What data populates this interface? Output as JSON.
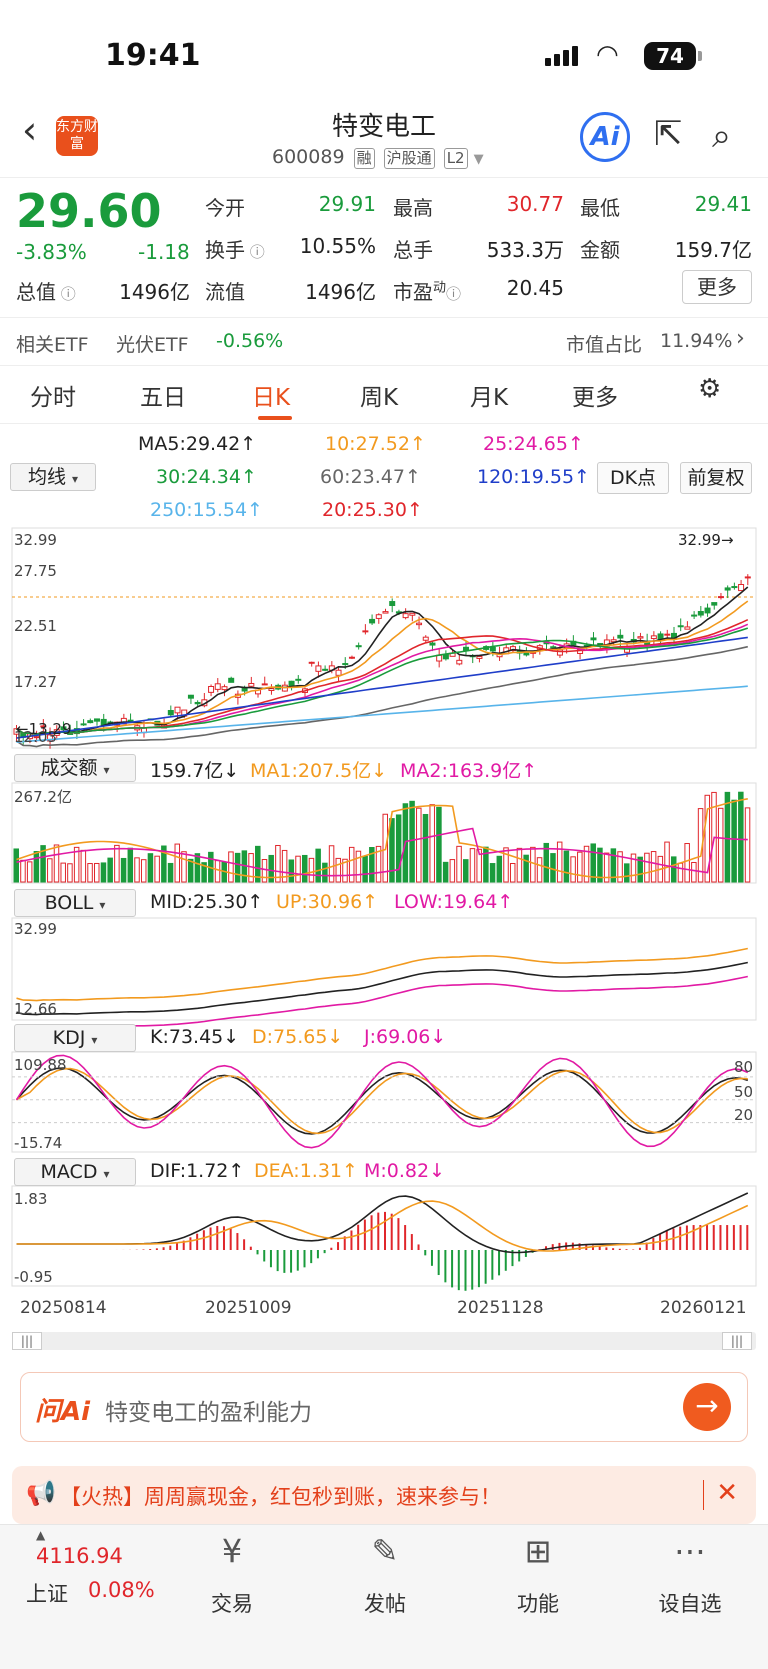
{
  "status": {
    "time": "19:41",
    "battery": "74"
  },
  "header": {
    "title": "特变电工",
    "code": "600089",
    "tags": [
      "融",
      "沪股通",
      "L2"
    ],
    "logo": "东方财富",
    "ai": "Ai"
  },
  "quote": {
    "price": "29.60",
    "pct": "-3.83%",
    "chg": "-1.18",
    "fields": [
      {
        "label": "今开",
        "value": "29.91",
        "color": "#1a9b3c"
      },
      {
        "label": "最高",
        "value": "30.77",
        "color": "#e0262b"
      },
      {
        "label": "最低",
        "value": "29.41",
        "color": "#1a9b3c"
      },
      {
        "label": "换手",
        "value": "10.55%",
        "color": "#222"
      },
      {
        "label": "总手",
        "value": "533.3万",
        "color": "#222"
      },
      {
        "label": "金额",
        "value": "159.7亿",
        "color": "#222"
      },
      {
        "label": "总值",
        "value": "1496亿",
        "color": "#222"
      },
      {
        "label": "流值",
        "value": "1496亿",
        "color": "#222"
      },
      {
        "label": "市盈",
        "value": "20.45",
        "color": "#222"
      }
    ],
    "pe_sup": "动",
    "more": "更多"
  },
  "etf": {
    "label": "相关ETF",
    "name": "光伏ETF",
    "pct": "-0.56%",
    "share_label": "市值占比",
    "share": "11.94%"
  },
  "tabs": [
    "分时",
    "五日",
    "日K",
    "周K",
    "月K",
    "更多"
  ],
  "ma": {
    "selector": "均线",
    "items": [
      {
        "text": "MA5:29.42↑",
        "color": "#222"
      },
      {
        "text": "10:27.52↑",
        "color": "#f29a1f"
      },
      {
        "text": "25:24.65↑",
        "color": "#e11aa4"
      },
      {
        "text": "30:24.34↑",
        "color": "#1a9b3c"
      },
      {
        "text": "60:23.47↑",
        "color": "#666"
      },
      {
        "text": "120:19.55↑",
        "color": "#1f3ec9"
      },
      {
        "text": "250:15.54↑",
        "color": "#58b4ea"
      },
      {
        "text": "20:25.30↑",
        "color": "#e0262b"
      }
    ],
    "dk": "DK点",
    "fq": "前复权"
  },
  "kline": {
    "ticks": [
      "32.99",
      "27.75",
      "22.51",
      "17.27",
      "12.03"
    ],
    "high_label": "32.99→",
    "low_label": "←13.29"
  },
  "vol": {
    "selector": "成交额",
    "v": "159.7亿↓",
    "ma1": "MA1:207.5亿↓",
    "ma2": "MA2:163.9亿↑",
    "top": "267.2亿"
  },
  "boll": {
    "selector": "BOLL",
    "mid": "MID:25.30↑",
    "up": "UP:30.96↑",
    "low": "LOW:19.64↑",
    "top": "32.99",
    "bot": "12.66"
  },
  "kdj": {
    "selector": "KDJ",
    "k": "K:73.45↓",
    "d": "D:75.65↓",
    "j": "J:69.06↓",
    "top": "109.88",
    "bot": "-15.74",
    "levels": [
      "80",
      "50",
      "20"
    ]
  },
  "macd": {
    "selector": "MACD",
    "dif": "DIF:1.72↑",
    "dea": "DEA:1.31↑",
    "m": "M:0.82↓",
    "top": "1.83",
    "bot": "-0.95"
  },
  "dates": [
    "20250814",
    "20251009",
    "20251128",
    "20260121"
  ],
  "ask": {
    "logo": "问Ai",
    "text": "特变电工的盈利能力"
  },
  "ad": {
    "text": "【火热】周周赢现金，红包秒到账，速来参与！"
  },
  "bottom": {
    "index_value": "4116.94",
    "index_name": "上证",
    "index_pct": "0.08%",
    "items": [
      "交易",
      "发帖",
      "功能",
      "设自选"
    ]
  }
}
